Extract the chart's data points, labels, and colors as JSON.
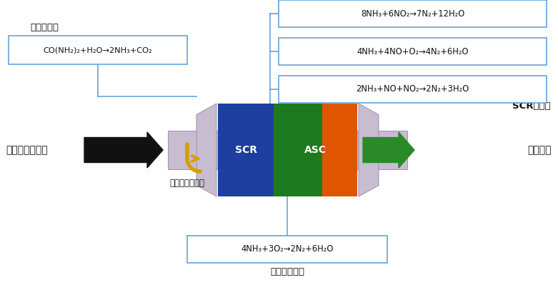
{
  "bg_color": "#ffffff",
  "equations": {
    "top1": "8NH₃+6NO₂→7N₂+12H₂O",
    "top2": "4NH₃+4NO+O₂→4N₂+6H₂O",
    "top3": "2NH₃+NO+NO₂→2N₂+3H₂O",
    "left_label": "水解还原剂",
    "left_eq": "CO(NH₂)₂+H₂O→2NH₃+CO₂",
    "bottom_eq": "4NH₃+3O₂→2N₂+6H₂O",
    "bottom_label": "氨氧化化化剂",
    "scr_label": "SCR化化剂",
    "inlet_label": "发动机排放废气",
    "outlet_label": "排放达标",
    "spray_label": "喷射尿素水溶液",
    "scr_text": "SCR",
    "asc_text": "ASC"
  },
  "colors": {
    "scr_blue": "#1e3fa0",
    "scr_green": "#1e7a1e",
    "asc_orange": "#e05500",
    "arrow_black": "#111111",
    "arrow_green": "#2a8a2a",
    "arrow_yellow": "#d4a000",
    "box_border": "#5b9bd5",
    "converter_body": "#c8bcd0",
    "converter_edge": "#a090a8",
    "text_dark": "#111111",
    "white": "#ffffff"
  }
}
